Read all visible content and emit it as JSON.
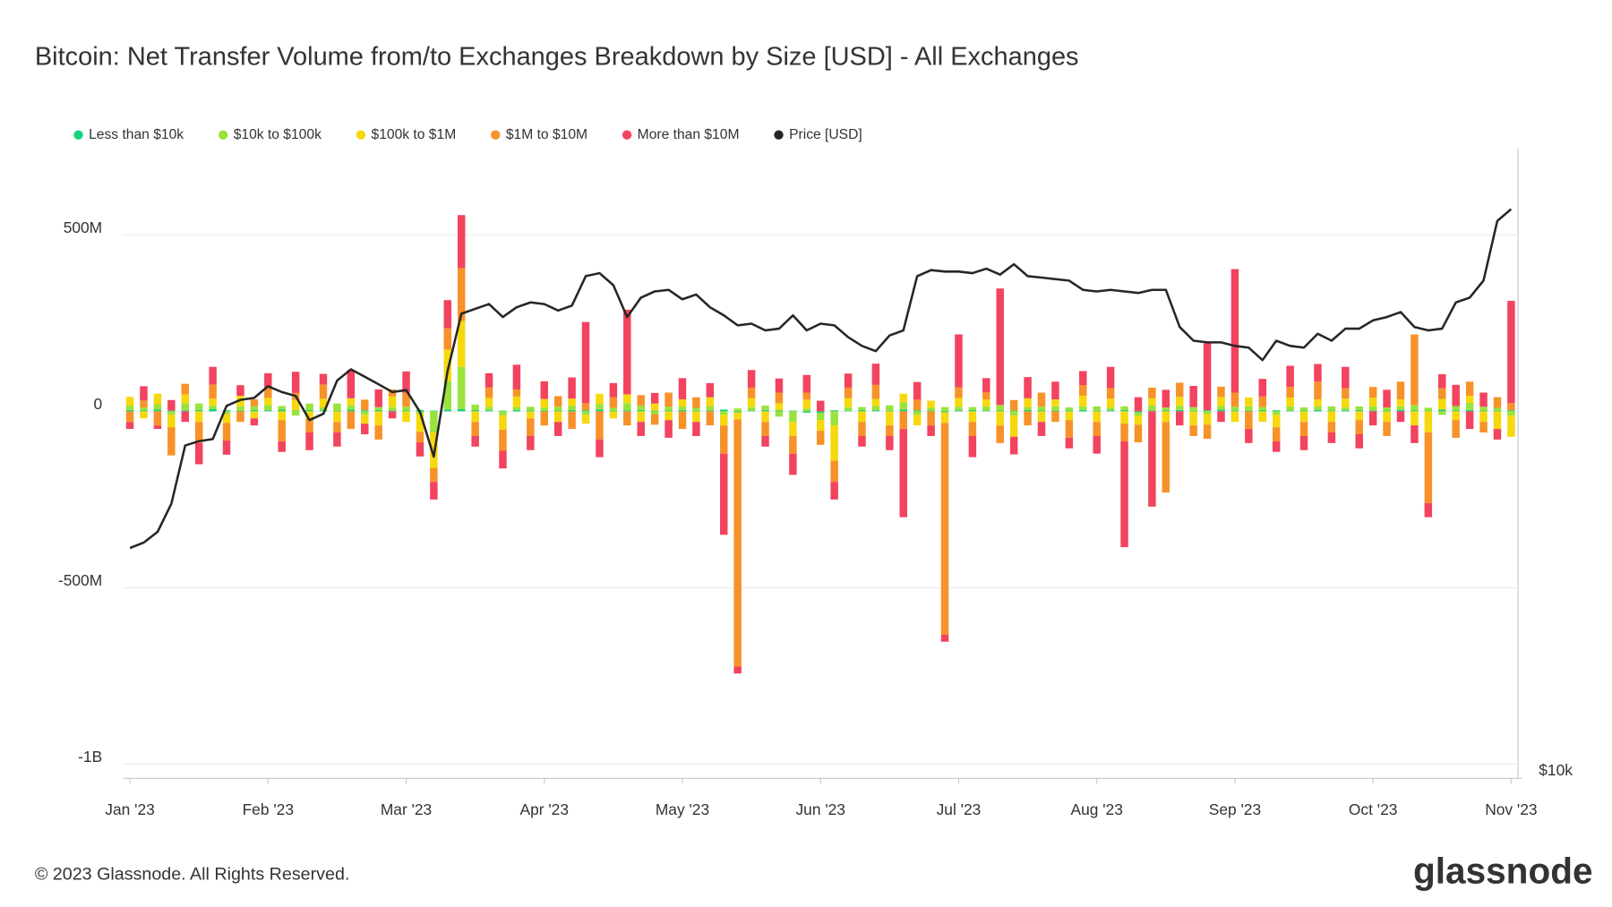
{
  "chart_data": {
    "type": "bar",
    "title": "Bitcoin: Net Transfer Volume from/to Exchanges Breakdown by Size [USD] - All Exchanges",
    "footer": "© 2023 Glassnode. All Rights Reserved.",
    "brand": "glassnode",
    "legend": "top-left",
    "grid": true,
    "y2log": true,
    "categories": [
      "Jan '23",
      null,
      null,
      null,
      null,
      null,
      null,
      null,
      null,
      null,
      "Feb '23",
      null,
      null,
      null,
      null,
      null,
      null,
      null,
      null,
      null,
      "Mar '23",
      null,
      null,
      null,
      null,
      null,
      null,
      null,
      null,
      null,
      "Apr '23",
      null,
      null,
      null,
      null,
      null,
      null,
      null,
      null,
      null,
      "May '23",
      null,
      null,
      null,
      null,
      null,
      null,
      null,
      null,
      null,
      "Jun '23",
      null,
      null,
      null,
      null,
      null,
      null,
      null,
      null,
      null,
      "Jul '23",
      null,
      null,
      null,
      null,
      null,
      null,
      null,
      null,
      null,
      "Aug '23",
      null,
      null,
      null,
      null,
      null,
      null,
      null,
      null,
      null,
      "Sep '23",
      null,
      null,
      null,
      null,
      null,
      null,
      null,
      null,
      null,
      "Oct '23",
      null,
      null,
      null,
      null,
      null,
      null,
      null,
      null,
      null,
      "Nov '23"
    ],
    "ylim": [
      -1040,
      745
    ],
    "yticks": [
      {
        "value": -1000,
        "label": "-1B"
      },
      {
        "value": -500,
        "label": "-500M"
      },
      0,
      {
        "value": 500,
        "label": "500M"
      }
    ],
    "y2lim": [
      10000,
      40000
    ],
    "y2ticks": [
      {
        "value": 10000,
        "label": "$10k"
      }
    ],
    "series": [
      {
        "name": "Less than $10k",
        "color": "#16d17f",
        "values": [
          4,
          3,
          5,
          2,
          3,
          4,
          6,
          3,
          2,
          4,
          3,
          5,
          2,
          4,
          3,
          2,
          5,
          3,
          4,
          2,
          3,
          4,
          2,
          5,
          6,
          4,
          3,
          2,
          4,
          3,
          2,
          3,
          4,
          3,
          5,
          2,
          3,
          4,
          2,
          3,
          4,
          2,
          3,
          5,
          -3,
          2,
          4,
          3,
          2,
          -4,
          -5,
          3,
          2,
          4,
          3,
          2,
          5,
          3,
          2,
          -3,
          3,
          4,
          2,
          3,
          2,
          4,
          3,
          2,
          3,
          4,
          2,
          3,
          4,
          -3,
          2,
          3,
          4,
          2,
          3,
          5,
          3,
          2,
          4,
          3,
          2,
          3,
          4,
          2,
          3,
          4,
          2,
          3,
          4,
          3,
          2,
          5,
          3,
          4,
          3,
          2,
          3
        ]
      },
      {
        "name": "$10k to $100k",
        "color": "#9ae23c",
        "values": [
          12,
          8,
          15,
          -10,
          20,
          18,
          10,
          -8,
          12,
          10,
          15,
          10,
          -12,
          18,
          8,
          20,
          12,
          -10,
          8,
          10,
          10,
          -8,
          -60,
          80,
          120,
          15,
          10,
          -12,
          8,
          10,
          8,
          10,
          12,
          -10,
          15,
          8,
          20,
          12,
          -8,
          10,
          10,
          8,
          12,
          -10,
          8,
          10,
          12,
          -15,
          -30,
          8,
          -20,
          -40,
          10,
          8,
          12,
          15,
          20,
          -10,
          8,
          12,
          10,
          8,
          12,
          15,
          -12,
          8,
          10,
          12,
          8,
          10,
          12,
          8,
          10,
          -10,
          15,
          8,
          12,
          10,
          -8,
          10,
          10,
          12,
          8,
          -10,
          12,
          8,
          10,
          12,
          8,
          10,
          12,
          8,
          10,
          15,
          8,
          -10,
          12,
          20,
          10,
          8,
          -12
        ]
      },
      {
        "name": "$100k to $1M",
        "color": "#f6d80e",
        "values": [
          25,
          -20,
          30,
          -35,
          25,
          -30,
          20,
          -25,
          30,
          -20,
          20,
          -25,
          30,
          -20,
          25,
          -30,
          20,
          -25,
          -40,
          30,
          -30,
          -50,
          -100,
          90,
          130,
          -30,
          25,
          -40,
          30,
          -20,
          25,
          -30,
          20,
          -25,
          30,
          -20,
          25,
          -30,
          20,
          -25,
          20,
          -30,
          25,
          -30,
          -20,
          25,
          -30,
          20,
          -40,
          25,
          -30,
          -100,
          25,
          -30,
          20,
          -40,
          25,
          -30,
          20,
          -30,
          25,
          -30,
          20,
          -40,
          -60,
          25,
          -30,
          20,
          -25,
          30,
          -30,
          25,
          -35,
          -25,
          20,
          -30,
          25,
          -40,
          -30,
          25,
          -30,
          25,
          -30,
          -35,
          25,
          -30,
          20,
          -30,
          25,
          -25,
          25,
          -30,
          20,
          -40,
          -60,
          30,
          -25,
          20,
          -30,
          -50,
          -60
        ]
      },
      {
        "name": "$1M to $10M",
        "color": "#f7922a",
        "values": [
          -30,
          20,
          -40,
          -80,
          30,
          -60,
          40,
          -50,
          -30,
          20,
          30,
          -60,
          20,
          -40,
          40,
          -30,
          -50,
          30,
          -40,
          20,
          40,
          -30,
          -40,
          60,
          150,
          -40,
          30,
          -60,
          20,
          -50,
          -40,
          30,
          -50,
          20,
          -80,
          30,
          -40,
          30,
          -30,
          40,
          -50,
          30,
          -40,
          -80,
          -700,
          30,
          -40,
          30,
          -50,
          20,
          -40,
          -60,
          30,
          -40,
          40,
          -30,
          -50,
          30,
          -40,
          -600,
          30,
          -40,
          20,
          -50,
          30,
          -40,
          40,
          -30,
          -50,
          30,
          -40,
          30,
          -50,
          -50,
          30,
          -200,
          40,
          -30,
          -40,
          30,
          40,
          -50,
          30,
          -40,
          30,
          -40,
          50,
          -30,
          30,
          -40,
          30,
          -40,
          50,
          200,
          -200,
          30,
          -50,
          40,
          -30,
          30,
          20
        ]
      },
      {
        "name": "More than $10M",
        "color": "#f2435f",
        "values": [
          -20,
          40,
          -10,
          30,
          -30,
          -60,
          50,
          -40,
          30,
          -20,
          40,
          -30,
          60,
          -50,
          30,
          -40,
          80,
          -30,
          50,
          -20,
          60,
          -40,
          -50,
          80,
          150,
          -30,
          40,
          -50,
          70,
          -40,
          50,
          -40,
          60,
          230,
          -50,
          40,
          240,
          -40,
          30,
          -50,
          60,
          -40,
          40,
          -230,
          -20,
          50,
          -30,
          40,
          -60,
          50,
          30,
          -50,
          40,
          -30,
          60,
          -40,
          -250,
          50,
          -30,
          -20,
          150,
          -60,
          40,
          330,
          -50,
          60,
          -40,
          50,
          -30,
          40,
          -50,
          60,
          -300,
          40,
          -270,
          50,
          -40,
          60,
          190,
          -30,
          350,
          -40,
          50,
          -30,
          60,
          -40,
          50,
          -30,
          60,
          -40,
          -40,
          50,
          -30,
          -50,
          -40,
          40,
          60,
          -50,
          40,
          -30,
          290
        ]
      },
      {
        "name": "Price [USD]",
        "color": "#262626",
        "axis": "y2",
        "values": [
          16600,
          16800,
          17200,
          18300,
          20800,
          21000,
          21100,
          22700,
          23000,
          23100,
          23700,
          23400,
          23200,
          22000,
          22300,
          24000,
          24600,
          24200,
          23800,
          23400,
          23500,
          22400,
          20300,
          24500,
          27800,
          28100,
          28400,
          27600,
          28200,
          28500,
          28400,
          28000,
          28300,
          30200,
          30400,
          29600,
          27600,
          28800,
          29200,
          29300,
          28700,
          29000,
          28200,
          27700,
          27100,
          27200,
          26800,
          26900,
          27700,
          26800,
          27200,
          27100,
          26400,
          25900,
          25600,
          26500,
          26800,
          30200,
          30600,
          30500,
          30500,
          30400,
          30700,
          30300,
          31000,
          30200,
          30100,
          30000,
          29900,
          29300,
          29200,
          29300,
          29200,
          29100,
          29300,
          29300,
          27000,
          26200,
          26100,
          26100,
          25900,
          25800,
          25100,
          26200,
          25900,
          25800,
          26600,
          26200,
          26900,
          26900,
          27400,
          27600,
          27900,
          27000,
          26800,
          26900,
          28500,
          28800,
          29900,
          34100,
          35000
        ]
      }
    ]
  }
}
